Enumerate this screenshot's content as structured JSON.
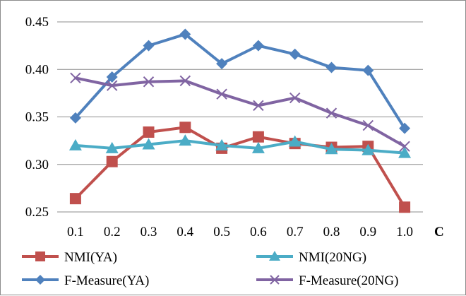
{
  "chart_data": {
    "type": "line",
    "xlabel": "C",
    "ylabel": "",
    "title": "",
    "x": [
      "0.1",
      "0.2",
      "0.3",
      "0.4",
      "0.5",
      "0.6",
      "0.7",
      "0.8",
      "0.9",
      "1.0"
    ],
    "ylim": [
      0.25,
      0.45
    ],
    "yticks": [
      "0.45",
      "0.40",
      "0.35",
      "0.30",
      "0.25"
    ],
    "grid": "horizontal",
    "legend": "bottom",
    "series": [
      {
        "name": "NMI(YA)",
        "color": "#c0504d",
        "marker": "square",
        "values": [
          0.264,
          0.303,
          0.334,
          0.339,
          0.317,
          0.329,
          0.322,
          0.318,
          0.319,
          0.255
        ]
      },
      {
        "name": "NMI(20NG)",
        "color": "#4bacc6",
        "marker": "triangle",
        "values": [
          0.32,
          0.317,
          0.321,
          0.325,
          0.32,
          0.317,
          0.324,
          0.316,
          0.315,
          0.312
        ]
      },
      {
        "name": "F-Measure(YA)",
        "color": "#4f81bd",
        "marker": "diamond",
        "values": [
          0.349,
          0.392,
          0.425,
          0.437,
          0.406,
          0.425,
          0.416,
          0.402,
          0.399,
          0.338
        ]
      },
      {
        "name": "F-Measure(20NG)",
        "color": "#8064a2",
        "marker": "x",
        "values": [
          0.391,
          0.383,
          0.387,
          0.388,
          0.374,
          0.362,
          0.37,
          0.354,
          0.341,
          0.319
        ]
      }
    ]
  }
}
